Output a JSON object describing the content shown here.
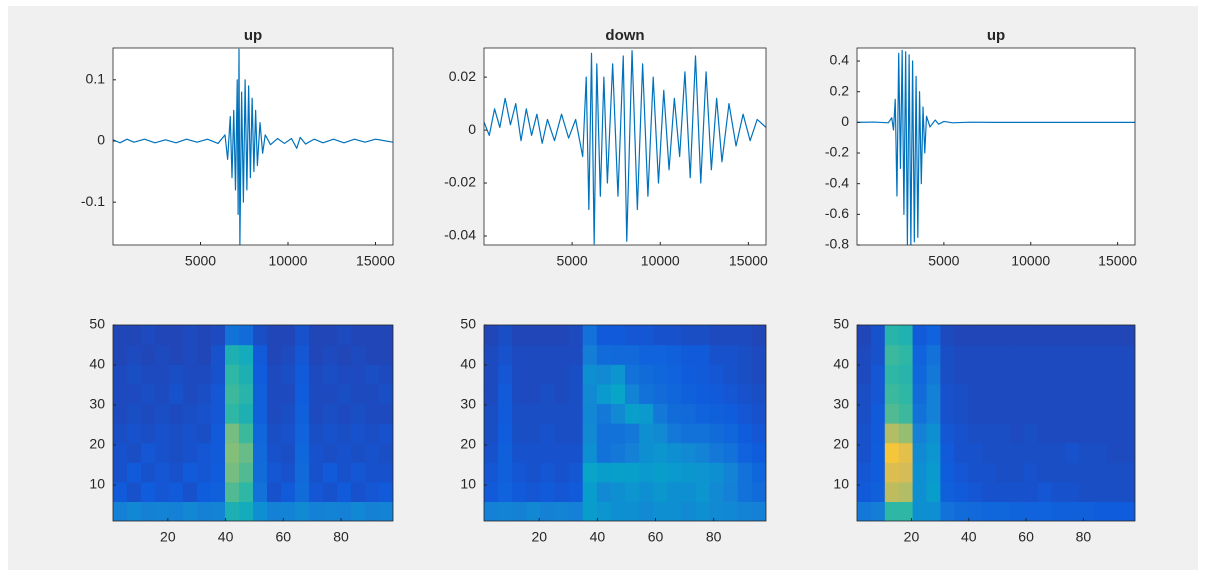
{
  "chart_data": [
    {
      "type": "line",
      "title": "up",
      "color": "#0072bd",
      "xlim": [
        0,
        16000
      ],
      "ylim": [
        -0.17,
        0.152
      ],
      "xticks": [
        5000,
        10000,
        15000
      ],
      "yticks": [
        -0.1,
        0,
        0.1
      ],
      "x": [
        0,
        400,
        800,
        1200,
        1800,
        2400,
        3000,
        3600,
        4200,
        4800,
        5400,
        6000,
        6400,
        6550,
        6700,
        6800,
        6900,
        7000,
        7100,
        7150,
        7200,
        7250,
        7350,
        7450,
        7550,
        7650,
        7750,
        7850,
        7950,
        8050,
        8150,
        8250,
        8400,
        8550,
        8700,
        9000,
        9400,
        9800,
        10200,
        10500,
        10700,
        11000,
        11500,
        12000,
        12600,
        13200,
        13800,
        14400,
        15000,
        16000
      ],
      "values": [
        0.002,
        -0.003,
        0.003,
        -0.002,
        0.003,
        -0.003,
        0.002,
        -0.003,
        0.003,
        -0.002,
        0.003,
        -0.004,
        0.01,
        -0.03,
        0.04,
        -0.06,
        0.05,
        -0.08,
        0.1,
        -0.12,
        0.15,
        -0.17,
        0.08,
        -0.1,
        0.1,
        -0.08,
        0.09,
        -0.06,
        0.07,
        -0.05,
        0.05,
        -0.04,
        0.03,
        -0.02,
        0.01,
        -0.006,
        0.004,
        -0.004,
        0.004,
        -0.012,
        0.006,
        -0.005,
        0.003,
        -0.003,
        0.003,
        -0.003,
        0.003,
        -0.002,
        0.003,
        -0.002
      ]
    },
    {
      "type": "line",
      "title": "down",
      "color": "#0072bd",
      "xlim": [
        0,
        16000
      ],
      "ylim": [
        -0.0434,
        0.031
      ],
      "xticks": [
        5000,
        10000,
        15000
      ],
      "yticks": [
        -0.04,
        -0.02,
        0,
        0.02
      ],
      "x": [
        0,
        300,
        600,
        900,
        1200,
        1500,
        1800,
        2100,
        2400,
        2700,
        3000,
        3300,
        3600,
        4000,
        4400,
        4800,
        5200,
        5600,
        5800,
        5950,
        6100,
        6250,
        6400,
        6600,
        6800,
        7000,
        7300,
        7600,
        7900,
        8100,
        8400,
        8700,
        9000,
        9300,
        9600,
        9900,
        10200,
        10500,
        10800,
        11100,
        11400,
        11700,
        12000,
        12300,
        12600,
        12900,
        13200,
        13500,
        13900,
        14300,
        14700,
        15100,
        15500,
        16000
      ],
      "values": [
        0.003,
        -0.002,
        0.008,
        0.001,
        0.012,
        0.002,
        0.01,
        -0.004,
        0.008,
        -0.002,
        0.006,
        -0.005,
        0.004,
        -0.004,
        0.006,
        -0.003,
        0.004,
        -0.01,
        0.02,
        -0.03,
        0.029,
        -0.043,
        0.025,
        -0.025,
        0.02,
        -0.02,
        0.025,
        -0.025,
        0.028,
        -0.042,
        0.03,
        -0.03,
        0.025,
        -0.025,
        0.02,
        -0.02,
        0.015,
        -0.015,
        0.012,
        -0.01,
        0.022,
        -0.018,
        0.028,
        -0.02,
        0.022,
        -0.015,
        0.012,
        -0.012,
        0.01,
        -0.006,
        0.006,
        -0.004,
        0.004,
        0.001
      ]
    },
    {
      "type": "line",
      "title": "up",
      "color": "#0072bd",
      "xlim": [
        0,
        16000
      ],
      "ylim": [
        -0.8,
        0.485
      ],
      "xticks": [
        5000,
        10000,
        15000
      ],
      "yticks": [
        -0.8,
        -0.6,
        -0.4,
        -0.2,
        0,
        0.2,
        0.4
      ],
      "x": [
        0,
        1000,
        1800,
        2000,
        2100,
        2200,
        2300,
        2400,
        2500,
        2600,
        2700,
        2800,
        2900,
        3000,
        3100,
        3200,
        3300,
        3400,
        3500,
        3600,
        3700,
        3800,
        3900,
        4000,
        4200,
        4500,
        4700,
        5000,
        5500,
        6500,
        8000,
        10000,
        12000,
        16000
      ],
      "values": [
        0,
        0.002,
        -0.003,
        0.03,
        -0.05,
        0.15,
        -0.48,
        0.45,
        -0.3,
        0.47,
        -0.6,
        0.46,
        -0.8,
        0.44,
        -0.8,
        0.4,
        -0.78,
        0.3,
        -0.75,
        0.2,
        -0.4,
        0.1,
        -0.2,
        0.04,
        -0.03,
        0.015,
        -0.012,
        0.006,
        -0.003,
        0.001,
        0,
        0,
        0,
        0
      ]
    },
    {
      "type": "heatmap",
      "colormap": "parula",
      "xlim": [
        1,
        98
      ],
      "ylim": [
        1,
        50
      ],
      "xticks": [
        20,
        40,
        60,
        80
      ],
      "yticks": [
        10,
        20,
        30,
        40,
        50
      ],
      "z": [
        [
          0.25,
          0.27,
          0.25,
          0.26,
          0.25,
          0.27,
          0.25,
          0.26,
          0.45,
          0.42,
          0.3,
          0.25,
          0.26,
          0.28,
          0.25,
          0.26,
          0.25,
          0.27,
          0.25,
          0.26
        ],
        [
          0.12,
          0.1,
          0.13,
          0.11,
          0.12,
          0.1,
          0.13,
          0.14,
          0.55,
          0.5,
          0.2,
          0.1,
          0.12,
          0.18,
          0.11,
          0.1,
          0.12,
          0.1,
          0.11,
          0.12
        ],
        [
          0.1,
          0.12,
          0.1,
          0.11,
          0.1,
          0.12,
          0.11,
          0.13,
          0.6,
          0.55,
          0.18,
          0.11,
          0.1,
          0.17,
          0.1,
          0.12,
          0.1,
          0.11,
          0.1,
          0.1
        ],
        [
          0.1,
          0.09,
          0.11,
          0.1,
          0.09,
          0.1,
          0.11,
          0.12,
          0.62,
          0.58,
          0.17,
          0.1,
          0.09,
          0.16,
          0.1,
          0.09,
          0.1,
          0.09,
          0.1,
          0.09
        ],
        [
          0.09,
          0.1,
          0.09,
          0.1,
          0.09,
          0.1,
          0.09,
          0.12,
          0.6,
          0.52,
          0.16,
          0.09,
          0.1,
          0.15,
          0.09,
          0.1,
          0.09,
          0.1,
          0.09,
          0.1
        ],
        [
          0.08,
          0.09,
          0.08,
          0.09,
          0.08,
          0.09,
          0.1,
          0.11,
          0.5,
          0.45,
          0.14,
          0.08,
          0.09,
          0.14,
          0.08,
          0.09,
          0.08,
          0.09,
          0.08,
          0.08
        ],
        [
          0.08,
          0.08,
          0.09,
          0.08,
          0.1,
          0.08,
          0.09,
          0.11,
          0.52,
          0.48,
          0.14,
          0.08,
          0.08,
          0.13,
          0.08,
          0.08,
          0.09,
          0.08,
          0.08,
          0.09
        ],
        [
          0.08,
          0.09,
          0.08,
          0.08,
          0.09,
          0.08,
          0.08,
          0.1,
          0.5,
          0.45,
          0.13,
          0.08,
          0.09,
          0.12,
          0.08,
          0.09,
          0.08,
          0.08,
          0.09,
          0.08
        ],
        [
          0.07,
          0.08,
          0.07,
          0.08,
          0.07,
          0.08,
          0.07,
          0.1,
          0.45,
          0.42,
          0.12,
          0.07,
          0.08,
          0.11,
          0.07,
          0.08,
          0.07,
          0.08,
          0.07,
          0.07
        ],
        [
          0.07,
          0.07,
          0.08,
          0.07,
          0.07,
          0.08,
          0.07,
          0.08,
          0.2,
          0.18,
          0.09,
          0.07,
          0.07,
          0.1,
          0.07,
          0.07,
          0.08,
          0.07,
          0.07,
          0.07
        ]
      ]
    },
    {
      "type": "heatmap",
      "colormap": "parula",
      "xlim": [
        1,
        98
      ],
      "ylim": [
        1,
        50
      ],
      "xticks": [
        20,
        40,
        60,
        80
      ],
      "yticks": [
        10,
        20,
        30,
        40,
        50
      ],
      "z": [
        [
          0.25,
          0.26,
          0.25,
          0.27,
          0.25,
          0.26,
          0.25,
          0.35,
          0.32,
          0.3,
          0.3,
          0.28,
          0.3,
          0.3,
          0.28,
          0.3,
          0.28,
          0.27,
          0.26,
          0.25
        ],
        [
          0.12,
          0.15,
          0.12,
          0.11,
          0.12,
          0.11,
          0.12,
          0.35,
          0.28,
          0.3,
          0.32,
          0.3,
          0.33,
          0.3,
          0.3,
          0.32,
          0.28,
          0.25,
          0.2,
          0.18
        ],
        [
          0.11,
          0.14,
          0.11,
          0.1,
          0.11,
          0.1,
          0.11,
          0.38,
          0.35,
          0.36,
          0.36,
          0.34,
          0.35,
          0.34,
          0.33,
          0.32,
          0.3,
          0.26,
          0.2,
          0.16
        ],
        [
          0.1,
          0.14,
          0.1,
          0.1,
          0.1,
          0.1,
          0.1,
          0.3,
          0.2,
          0.22,
          0.25,
          0.3,
          0.32,
          0.3,
          0.28,
          0.26,
          0.22,
          0.2,
          0.15,
          0.13
        ],
        [
          0.09,
          0.13,
          0.09,
          0.09,
          0.1,
          0.09,
          0.09,
          0.28,
          0.2,
          0.2,
          0.22,
          0.3,
          0.28,
          0.22,
          0.2,
          0.2,
          0.18,
          0.16,
          0.13,
          0.11
        ],
        [
          0.09,
          0.12,
          0.09,
          0.09,
          0.09,
          0.09,
          0.09,
          0.27,
          0.22,
          0.28,
          0.36,
          0.34,
          0.22,
          0.18,
          0.17,
          0.15,
          0.14,
          0.13,
          0.11,
          0.1
        ],
        [
          0.08,
          0.12,
          0.08,
          0.08,
          0.09,
          0.08,
          0.09,
          0.28,
          0.34,
          0.38,
          0.26,
          0.2,
          0.18,
          0.16,
          0.14,
          0.13,
          0.12,
          0.11,
          0.1,
          0.09
        ],
        [
          0.08,
          0.11,
          0.08,
          0.08,
          0.08,
          0.08,
          0.09,
          0.3,
          0.28,
          0.32,
          0.2,
          0.18,
          0.16,
          0.15,
          0.13,
          0.12,
          0.11,
          0.1,
          0.09,
          0.08
        ],
        [
          0.08,
          0.1,
          0.08,
          0.08,
          0.08,
          0.08,
          0.08,
          0.24,
          0.18,
          0.17,
          0.17,
          0.15,
          0.15,
          0.14,
          0.12,
          0.12,
          0.1,
          0.1,
          0.09,
          0.08
        ],
        [
          0.07,
          0.09,
          0.07,
          0.07,
          0.07,
          0.07,
          0.08,
          0.2,
          0.12,
          0.12,
          0.11,
          0.11,
          0.1,
          0.1,
          0.09,
          0.09,
          0.08,
          0.08,
          0.08,
          0.07
        ]
      ]
    },
    {
      "type": "heatmap",
      "colormap": "parula",
      "xlim": [
        1,
        98
      ],
      "ylim": [
        1,
        50
      ],
      "xticks": [
        20,
        40,
        60,
        80
      ],
      "yticks": [
        10,
        20,
        30,
        40,
        50
      ],
      "z": [
        [
          0.22,
          0.24,
          0.5,
          0.5,
          0.3,
          0.3,
          0.2,
          0.18,
          0.17,
          0.16,
          0.16,
          0.15,
          0.15,
          0.15,
          0.14,
          0.14,
          0.14,
          0.13,
          0.13,
          0.13
        ],
        [
          0.12,
          0.14,
          0.72,
          0.7,
          0.3,
          0.35,
          0.14,
          0.12,
          0.11,
          0.1,
          0.1,
          0.1,
          0.1,
          0.11,
          0.1,
          0.1,
          0.09,
          0.09,
          0.09,
          0.09
        ],
        [
          0.11,
          0.13,
          0.78,
          0.76,
          0.3,
          0.34,
          0.13,
          0.11,
          0.1,
          0.1,
          0.09,
          0.09,
          0.1,
          0.09,
          0.09,
          0.09,
          0.09,
          0.09,
          0.09,
          0.09
        ],
        [
          0.1,
          0.13,
          0.85,
          0.8,
          0.28,
          0.32,
          0.12,
          0.1,
          0.1,
          0.09,
          0.09,
          0.09,
          0.09,
          0.09,
          0.09,
          0.1,
          0.09,
          0.09,
          0.08,
          0.08
        ],
        [
          0.1,
          0.12,
          0.7,
          0.65,
          0.25,
          0.3,
          0.11,
          0.1,
          0.09,
          0.09,
          0.09,
          0.08,
          0.09,
          0.08,
          0.08,
          0.08,
          0.08,
          0.08,
          0.08,
          0.08
        ],
        [
          0.09,
          0.12,
          0.55,
          0.52,
          0.2,
          0.25,
          0.1,
          0.09,
          0.08,
          0.08,
          0.08,
          0.08,
          0.08,
          0.08,
          0.08,
          0.08,
          0.08,
          0.08,
          0.08,
          0.08
        ],
        [
          0.09,
          0.11,
          0.52,
          0.5,
          0.18,
          0.25,
          0.1,
          0.09,
          0.08,
          0.08,
          0.08,
          0.08,
          0.08,
          0.08,
          0.08,
          0.08,
          0.08,
          0.08,
          0.08,
          0.08
        ],
        [
          0.08,
          0.11,
          0.5,
          0.48,
          0.16,
          0.22,
          0.09,
          0.08,
          0.08,
          0.08,
          0.08,
          0.08,
          0.08,
          0.08,
          0.08,
          0.08,
          0.08,
          0.08,
          0.08,
          0.08
        ],
        [
          0.08,
          0.1,
          0.52,
          0.5,
          0.15,
          0.2,
          0.09,
          0.08,
          0.08,
          0.08,
          0.08,
          0.08,
          0.08,
          0.08,
          0.08,
          0.08,
          0.08,
          0.08,
          0.08,
          0.08
        ],
        [
          0.07,
          0.1,
          0.48,
          0.46,
          0.12,
          0.15,
          0.08,
          0.07,
          0.07,
          0.07,
          0.07,
          0.07,
          0.07,
          0.07,
          0.07,
          0.07,
          0.07,
          0.07,
          0.07,
          0.07
        ]
      ]
    }
  ]
}
